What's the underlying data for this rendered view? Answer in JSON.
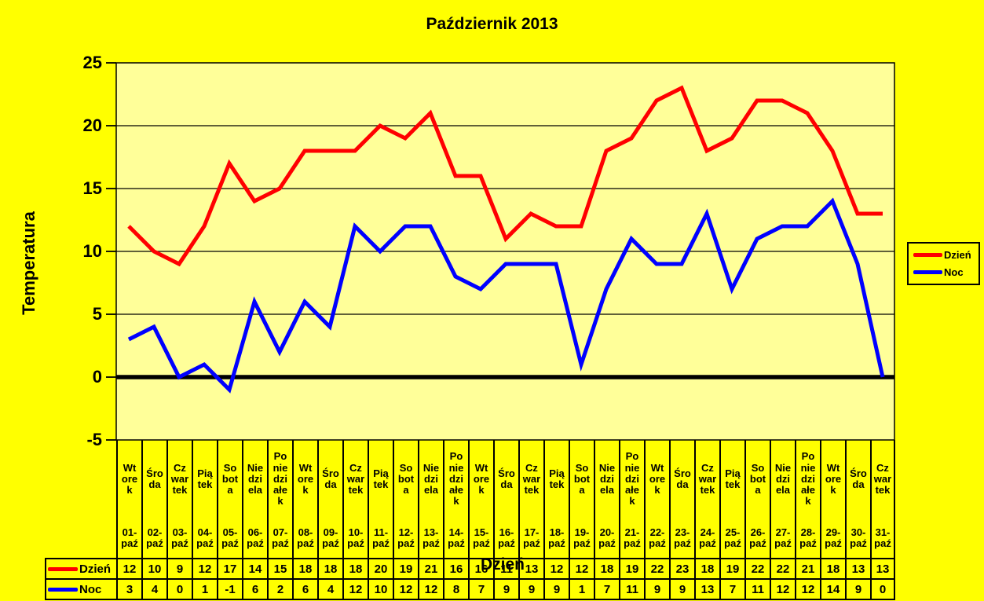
{
  "title": "Październik 2013",
  "colors": {
    "background": "#FFFF00",
    "plot_background": "#FFFF99",
    "grid": "#000000",
    "day_series": "#FF0000",
    "night_series": "#0000FF"
  },
  "y_axis": {
    "title": "Temperatura",
    "ticks": [
      "25",
      "20",
      "15",
      "10",
      "5",
      "0",
      "-5"
    ]
  },
  "x_axis": {
    "title": "Dzień"
  },
  "legend": {
    "items": [
      {
        "label": "Dzień",
        "color": "#FF0000"
      },
      {
        "label": "Noc",
        "color": "#0000FF"
      }
    ]
  },
  "chart_data": {
    "type": "line",
    "title": "Październik 2013",
    "xlabel": "Dzień",
    "ylabel": "Temperatura",
    "ylim": [
      -5,
      25
    ],
    "ytick_step": 5,
    "grid": "horizontal",
    "legend_position": "right",
    "x_dates": [
      "01-paź",
      "02-paź",
      "03-paź",
      "04-paź",
      "05-paź",
      "06-paź",
      "07-paź",
      "08-paź",
      "09-paź",
      "10-paź",
      "11-paź",
      "12-paź",
      "13-paź",
      "14-paź",
      "15-paź",
      "16-paź",
      "17-paź",
      "18-paź",
      "19-paź",
      "20-paź",
      "21-paź",
      "22-paź",
      "23-paź",
      "24-paź",
      "25-paź",
      "26-paź",
      "27-paź",
      "28-paź",
      "29-paź",
      "30-paź",
      "31-paź"
    ],
    "x_weekdays": [
      "Wtorek",
      "Środa",
      "Czwartek",
      "Piątek",
      "Sobota",
      "Niedziela",
      "Poniedziałek",
      "Wtorek",
      "Środa",
      "Czwartek",
      "Piątek",
      "Sobota",
      "Niedziela",
      "Poniedziałek",
      "Wtorek",
      "Środa",
      "Czwartek",
      "Piątek",
      "Sobota",
      "Niedziela",
      "Poniedziałek",
      "Wtorek",
      "Środa",
      "Czwartek",
      "Piątek",
      "Sobota",
      "Niedziela",
      "Poniedziałek",
      "Wtorek",
      "Środa",
      "Czwartek"
    ],
    "series": [
      {
        "name": "Dzień",
        "color": "#FF0000",
        "values": [
          12,
          10,
          9,
          12,
          17,
          14,
          15,
          18,
          18,
          18,
          20,
          19,
          21,
          16,
          16,
          11,
          13,
          12,
          12,
          18,
          19,
          22,
          23,
          18,
          19,
          22,
          22,
          21,
          18,
          13,
          13
        ]
      },
      {
        "name": "Noc",
        "color": "#0000FF",
        "values": [
          3,
          4,
          0,
          1,
          -1,
          6,
          2,
          6,
          4,
          12,
          10,
          12,
          12,
          8,
          7,
          9,
          9,
          9,
          1,
          7,
          11,
          9,
          9,
          13,
          7,
          11,
          12,
          12,
          14,
          9,
          0
        ]
      }
    ]
  },
  "table": {
    "weekday_wrap": {
      "Wtorek": "Wt\nore\nk",
      "Środa": "Śro\nda",
      "Czwartek": "Cz\nwar\ntek",
      "Piątek": "Pią\ntek",
      "Sobota": "So\nbot\na",
      "Niedziela": "Nie\ndzi\nela",
      "Poniedziałek": "Po\nnie\ndzi\nałe\nk"
    }
  }
}
